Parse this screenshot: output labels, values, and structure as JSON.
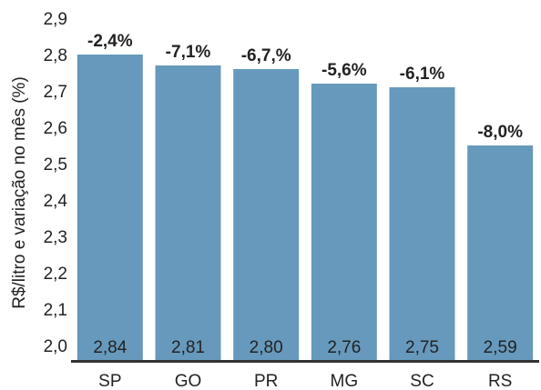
{
  "chart_data": {
    "type": "bar",
    "y_label": "R$/litro e variação no mês (%)",
    "categories": [
      "SP",
      "GO",
      "PR",
      "MG",
      "SC",
      "RS"
    ],
    "values": [
      2.84,
      2.81,
      2.8,
      2.76,
      2.75,
      2.59
    ],
    "value_labels": [
      "2,84",
      "2,81",
      "2,80",
      "2,76",
      "2,75",
      "2,59"
    ],
    "annotations": [
      "-2,4%",
      "-7,1%",
      "-6,7,%",
      "-5,6%",
      "-6,1%",
      "-8,0%"
    ],
    "color": "#6699bb",
    "ylim": [
      2.0,
      2.9
    ],
    "yticks": [
      {
        "value": 2.0,
        "label": "2,0"
      },
      {
        "value": 2.1,
        "label": "2,1"
      },
      {
        "value": 2.2,
        "label": "2,2"
      },
      {
        "value": 2.3,
        "label": "2,3"
      },
      {
        "value": 2.4,
        "label": "2,4"
      },
      {
        "value": 2.5,
        "label": "2,5"
      },
      {
        "value": 2.6,
        "label": "2,6"
      },
      {
        "value": 2.7,
        "label": "2,7"
      },
      {
        "value": 2.8,
        "label": "2,8"
      },
      {
        "value": 2.9,
        "label": "2,9"
      }
    ],
    "grid": false
  }
}
